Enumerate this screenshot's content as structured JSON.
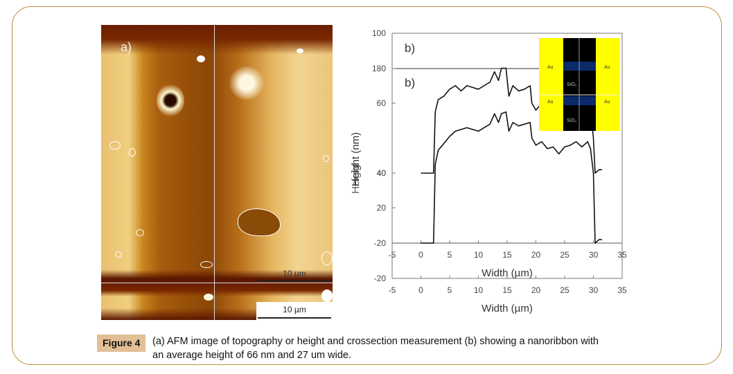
{
  "figure": {
    "label": "Figure 4",
    "caption_line1": "(a) AFM image of topography or height and crossection measurement (b) showing a nanoribbon with",
    "caption_line2": "an average height of 66 nm and 27 um wide."
  },
  "panel_a": {
    "label": "a)",
    "scale_bar_top": "10 µm",
    "scale_bar_bottom": "10 µm",
    "colors": {
      "dark": "#6b1e00",
      "mid": "#a85e10",
      "light": "#f0cf80"
    }
  },
  "panel_b": {
    "label_top": "b)",
    "label_inner": "b)",
    "inset": {
      "left_top": "Au",
      "right_top": "Au",
      "left_bottom": "Au",
      "right_bottom": "Au",
      "center_top": "SiO₂",
      "center_bottom": "SiO₂",
      "colors": {
        "gold": "#ffff00",
        "oxide": "#000000",
        "ribbon": "#0a2a6a"
      }
    }
  },
  "chart_data": {
    "type": "line",
    "title": "",
    "xlabel": "Width (µm)",
    "xlabel_overlay": "Width (µm)",
    "ylabel": "Height (nm)",
    "ylabel_overlay": "Height",
    "xlim": [
      -5,
      35
    ],
    "x_ticks": [
      "-5",
      "0",
      "5",
      "10",
      "15",
      "20",
      "25",
      "30",
      "35"
    ],
    "y_ticks_labels": [
      "-20",
      "-20",
      "20",
      "40",
      "40",
      "60",
      "180",
      "100"
    ],
    "grid": false,
    "series": [
      {
        "name": "profile-upper",
        "x": [
          0,
          2.2,
          2.5,
          3,
          4,
          5,
          6,
          7,
          8,
          9,
          10,
          11,
          12,
          12.8,
          13.5,
          14,
          14.8,
          15.3,
          16,
          17,
          18,
          19,
          19.3,
          20,
          21,
          22,
          23,
          24,
          25,
          26,
          27,
          28,
          29,
          29.5,
          30,
          30.3,
          31,
          31.5
        ],
        "y": [
          20,
          20,
          55,
          62,
          64,
          68,
          70,
          67,
          70,
          69,
          68,
          70,
          72,
          78,
          73,
          80,
          80,
          64,
          70,
          67,
          68,
          70,
          60,
          56,
          60,
          54,
          56,
          52,
          55,
          56,
          58,
          56,
          58,
          56,
          40,
          20,
          22,
          22
        ]
      },
      {
        "name": "profile-lower",
        "x": [
          0,
          2.2,
          2.5,
          3,
          4,
          5,
          6,
          7,
          8,
          9,
          10,
          11,
          12,
          12.8,
          13.5,
          14,
          14.8,
          15.3,
          16,
          17,
          18,
          19,
          19.3,
          20,
          21,
          22,
          23,
          24,
          25,
          26,
          27,
          28,
          29,
          29.5,
          30,
          30.3,
          31,
          31.5
        ],
        "y": [
          -20,
          -20,
          25,
          33,
          37,
          41,
          44,
          45,
          46,
          45,
          44,
          46,
          48,
          54,
          49,
          54,
          55,
          44,
          49,
          47,
          48,
          49,
          40,
          36,
          38,
          34,
          35,
          31,
          35,
          36,
          38,
          35,
          38,
          34,
          20,
          -20,
          -18,
          -18
        ]
      }
    ]
  }
}
